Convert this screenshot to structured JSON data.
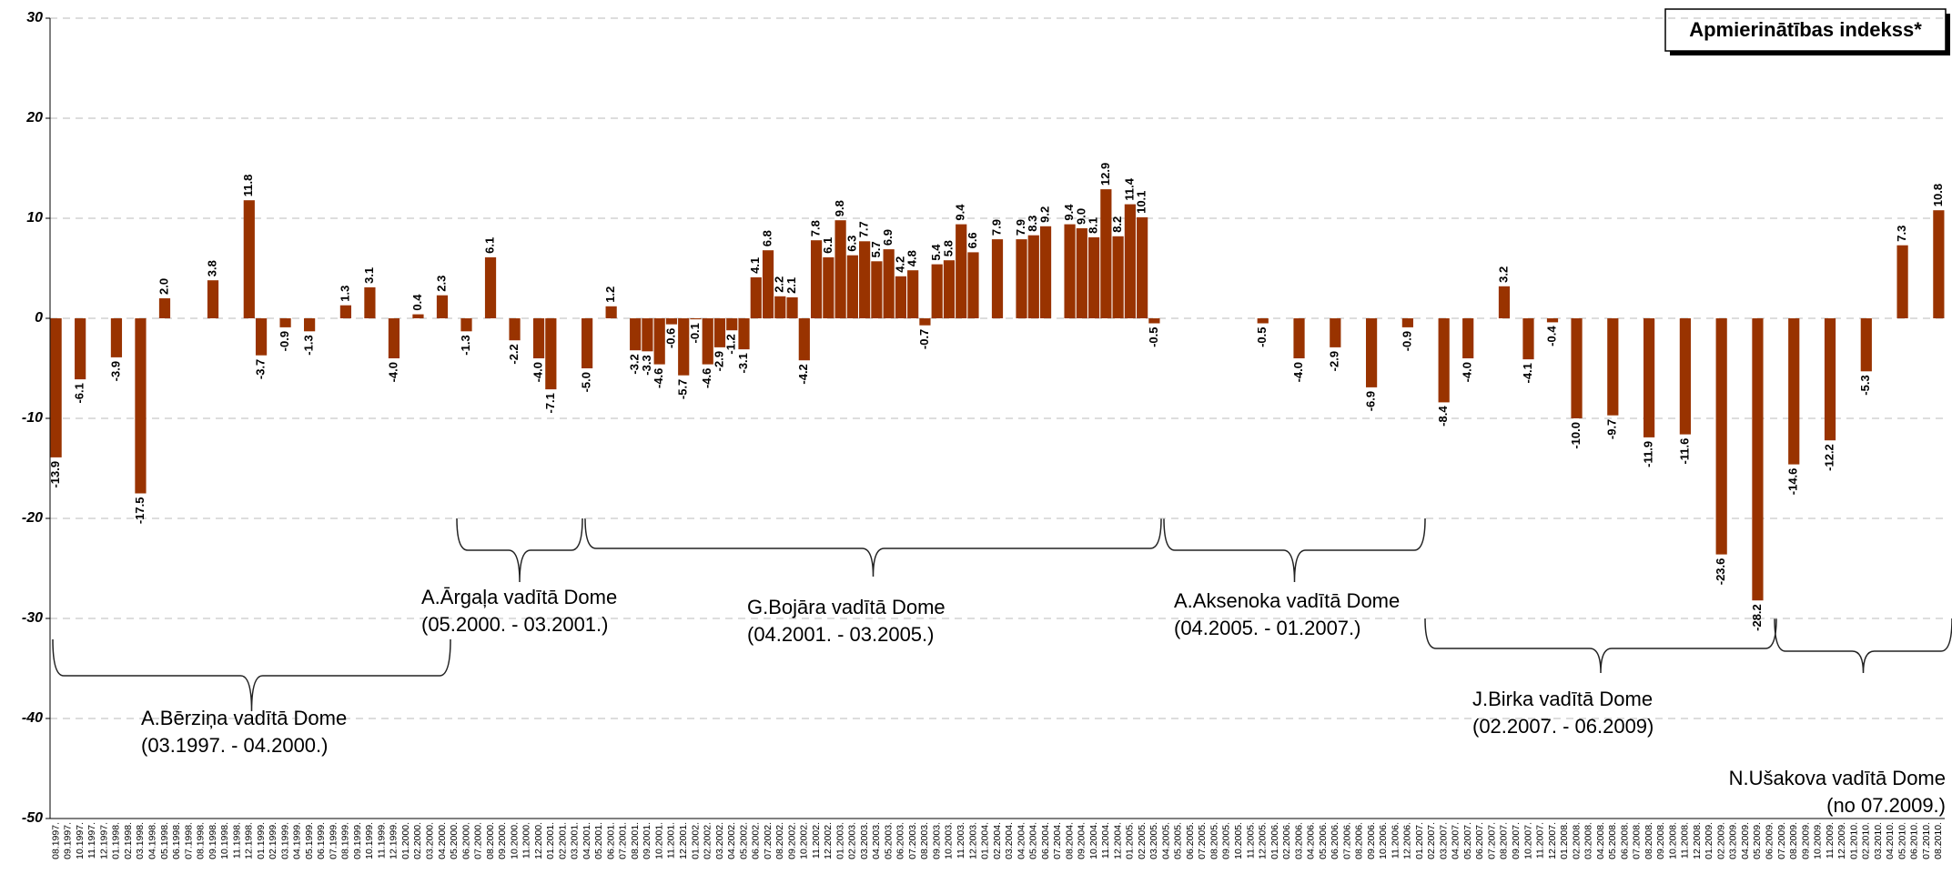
{
  "chart_data": {
    "type": "bar",
    "title": "Apmierinātības indekss*",
    "categories": [
      "08.1997.",
      "09.1997.",
      "10.1997.",
      "11.1997.",
      "12.1997.",
      "01.1998.",
      "02.1998.",
      "03.1998.",
      "04.1998.",
      "05.1998.",
      "06.1998.",
      "07.1998.",
      "08.1998.",
      "09.1998.",
      "10.1998.",
      "11.1998.",
      "12.1998.",
      "01.1999.",
      "02.1999.",
      "03.1999.",
      "04.1999.",
      "05.1999.",
      "06.1999.",
      "07.1999.",
      "08.1999.",
      "09.1999.",
      "10.1999.",
      "11.1999.",
      "12.1999.",
      "01.2000.",
      "02.2000.",
      "03.2000.",
      "04.2000.",
      "05.2000.",
      "06.2000.",
      "07.2000.",
      "08.2000.",
      "09.2000.",
      "10.2000.",
      "11.2000.",
      "12.2000.",
      "01.2001.",
      "02.2001.",
      "03.2001.",
      "04.2001.",
      "05.2001.",
      "06.2001.",
      "07.2001.",
      "08.2001.",
      "09.2001.",
      "10.2001.",
      "11.2001.",
      "12.2001.",
      "01.2002.",
      "02.2002.",
      "03.2002.",
      "04.2002.",
      "05.2002.",
      "06.2002.",
      "07.2002.",
      "08.2002.",
      "09.2002.",
      "10.2002.",
      "11.2002.",
      "12.2002.",
      "01.2003.",
      "02.2003.",
      "03.2003.",
      "04.2003.",
      "05.2003.",
      "06.2003.",
      "07.2003.",
      "08.2003.",
      "09.2003.",
      "10.2003.",
      "11.2003.",
      "12.2003.",
      "01.2004.",
      "02.2004.",
      "03.2004.",
      "04.2004.",
      "05.2004.",
      "06.2004.",
      "07.2004.",
      "08.2004.",
      "09.2004.",
      "10.2004.",
      "11.2004.",
      "12.2004.",
      "01.2005.",
      "02.2005.",
      "03.2005.",
      "04.2005.",
      "05.2005.",
      "06.2005.",
      "07.2005.",
      "08.2005.",
      "09.2005.",
      "10.2005.",
      "11.2005.",
      "12.2005.",
      "01.2006.",
      "02.2006.",
      "03.2006.",
      "04.2006.",
      "05.2006.",
      "06.2006.",
      "07.2006.",
      "08.2006.",
      "09.2006.",
      "10.2006.",
      "11.2006.",
      "12.2006.",
      "01.2007.",
      "02.2007.",
      "03.2007.",
      "04.2007.",
      "05.2007.",
      "06.2007.",
      "07.2007.",
      "08.2007.",
      "09.2007.",
      "10.2007.",
      "11.2007.",
      "12.2007.",
      "01.2008.",
      "02.2008.",
      "03.2008.",
      "04.2008.",
      "05.2008.",
      "06.2008.",
      "07.2008.",
      "08.2008.",
      "09.2008.",
      "10.2008.",
      "11.2008.",
      "12.2008.",
      "01.2009.",
      "02.2009.",
      "03.2009.",
      "04.2009.",
      "05.2009.",
      "06.2009.",
      "07.2009.",
      "08.2009.",
      "09.2009.",
      "10.2009.",
      "11.2009.",
      "12.2009.",
      "01.2010.",
      "02.2010.",
      "03.2010.",
      "04.2010.",
      "05.2010.",
      "06.2010.",
      "07.2010.",
      "08.2010."
    ],
    "values": [
      -13.9,
      null,
      -6.1,
      null,
      null,
      -3.9,
      null,
      -17.5,
      null,
      2.0,
      null,
      null,
      null,
      3.8,
      null,
      null,
      11.8,
      -3.7,
      null,
      -0.9,
      null,
      -1.3,
      null,
      null,
      1.3,
      null,
      3.1,
      null,
      -4.0,
      null,
      0.4,
      null,
      2.3,
      null,
      -1.3,
      null,
      6.1,
      null,
      -2.2,
      null,
      -4.0,
      -7.1,
      null,
      null,
      -5.0,
      null,
      1.2,
      null,
      -3.2,
      -3.3,
      -4.6,
      -0.6,
      -5.7,
      -0.1,
      -4.6,
      -2.9,
      -1.2,
      -3.1,
      4.1,
      6.8,
      2.2,
      2.1,
      -4.2,
      7.8,
      6.1,
      9.8,
      6.3,
      7.7,
      5.7,
      6.9,
      4.2,
      4.8,
      -0.7,
      5.4,
      5.8,
      9.4,
      6.6,
      null,
      7.9,
      null,
      7.9,
      8.3,
      9.2,
      null,
      9.4,
      9.0,
      8.1,
      12.9,
      8.2,
      11.4,
      10.1,
      -0.5,
      null,
      null,
      null,
      null,
      null,
      null,
      null,
      null,
      -0.5,
      null,
      null,
      -4.0,
      null,
      null,
      -2.9,
      null,
      null,
      -6.9,
      null,
      null,
      -0.9,
      null,
      null,
      -8.4,
      null,
      -4.0,
      null,
      null,
      3.2,
      null,
      -4.1,
      null,
      -0.4,
      null,
      -10.0,
      null,
      null,
      -9.7,
      null,
      null,
      -11.9,
      null,
      null,
      -11.6,
      null,
      null,
      -23.6,
      null,
      null,
      -28.2,
      null,
      null,
      -14.6,
      null,
      null,
      -12.2,
      null,
      null,
      -5.3,
      null,
      null,
      7.3,
      null,
      null,
      10.8
    ],
    "value_labels": [
      null,
      null,
      null,
      null,
      null,
      null,
      null,
      null,
      null,
      "2.0",
      null,
      null,
      null,
      null,
      null,
      null,
      null,
      null,
      null,
      null,
      null,
      null,
      null,
      null,
      null,
      null,
      null,
      null,
      "-4.0",
      null,
      null,
      null,
      null,
      null,
      null,
      null,
      null,
      null,
      null,
      null,
      "-4.0",
      null,
      null,
      null,
      "-5.0",
      null,
      null,
      null,
      null,
      null,
      null,
      null,
      null,
      null,
      null,
      null,
      null,
      null,
      null,
      null,
      null,
      null,
      null,
      null,
      null,
      null,
      null,
      null,
      null,
      null,
      null,
      null,
      null,
      null,
      null,
      null,
      null,
      null,
      null,
      null,
      null,
      null,
      null,
      null,
      null,
      "9.0",
      null,
      null,
      null,
      null,
      null,
      null,
      null,
      null,
      null,
      null,
      null,
      null,
      null,
      null,
      null,
      null,
      null,
      "-4.0",
      null,
      null,
      null,
      null,
      null,
      null,
      null,
      null,
      null,
      null,
      null,
      null,
      null,
      "-4.0",
      null,
      null,
      null,
      null,
      null,
      null,
      null,
      null,
      "-10.0",
      null,
      null,
      null,
      null,
      null,
      null,
      null,
      null,
      null,
      null,
      null,
      null,
      null,
      null,
      null,
      null,
      null,
      null,
      null,
      null,
      null,
      null,
      null,
      null,
      null,
      null,
      null,
      null,
      null,
      null
    ],
    "color": "#993300",
    "ylim": [
      -50,
      30
    ],
    "yticks": [
      -50,
      -40,
      -30,
      -20,
      -10,
      0,
      10,
      20,
      30
    ],
    "grid": true,
    "annotations": [
      {
        "lines": [
          "A.Bērziņa vadītā Dome",
          "(03.1997. - 04.2000.)"
        ]
      },
      {
        "lines": [
          "A.Ārgaļa vadītā Dome",
          "(05.2000. - 03.2001.)"
        ]
      },
      {
        "lines": [
          "G.Bojāra vadītā Dome",
          "(04.2001. - 03.2005.)"
        ]
      },
      {
        "lines": [
          "A.Aksenoka vadītā Dome",
          "(04.2005. - 01.2007.)"
        ]
      },
      {
        "lines": [
          "J.Birka vadītā Dome",
          "(02.2007. - 06.2009)"
        ]
      },
      {
        "lines": [
          "N.Ušakova vadītā Dome",
          "(no 07.2009.)"
        ]
      }
    ]
  }
}
